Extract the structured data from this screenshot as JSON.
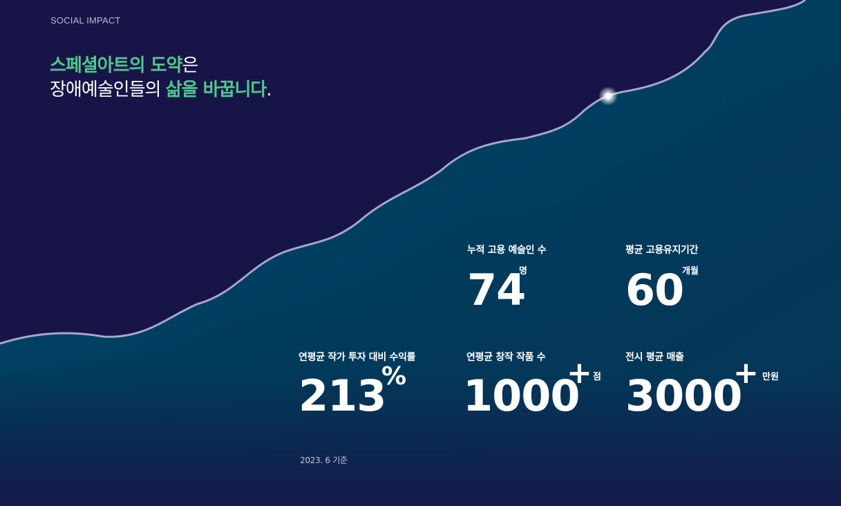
{
  "eyebrow": "SOCIAL IMPACT",
  "headline": {
    "line1_hl": "스페셜아트의 도약",
    "line1_rest": "은",
    "line2_pre": "장애예술인들의 ",
    "line2_hl": "삶을 바꿉니다",
    "line2_end": "."
  },
  "stats": {
    "employed": {
      "label": "누적 고용 예술인 수",
      "value": "74",
      "unit": "명"
    },
    "tenure": {
      "label": "평균 고용유지기간",
      "value": "60",
      "unit": "개월"
    },
    "roi": {
      "label": "연평균 작가 투자 대비 수익률",
      "value": "213",
      "sup": "%"
    },
    "works": {
      "label": "연평균 창작 작품 수",
      "value": "1000",
      "sup": "+",
      "unit": "점"
    },
    "sales": {
      "label": "전시 평균 매출",
      "value": "3000",
      "sup": "+",
      "unit": "만원"
    }
  },
  "basis": "2023. 6 기준",
  "colors": {
    "background": "#171547",
    "accent_green": "#4fc98c",
    "wave_teal": "#014062",
    "line": "#a8a7c9"
  }
}
